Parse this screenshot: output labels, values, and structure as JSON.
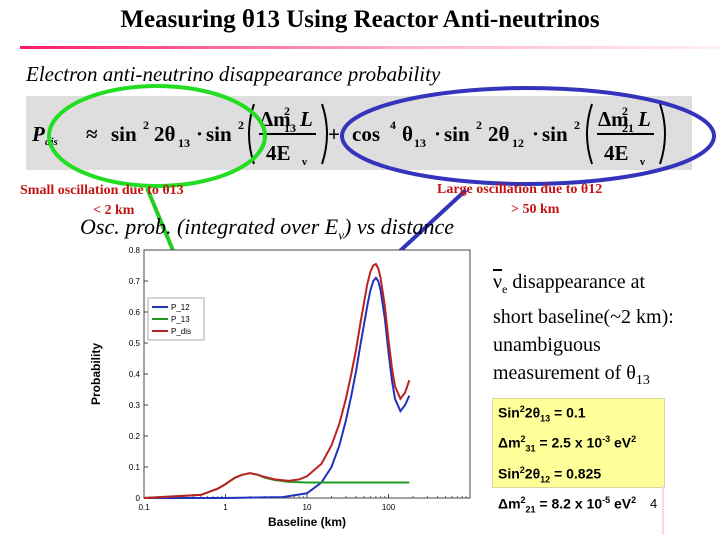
{
  "slide": {
    "title": "Measuring θ13 Using Reactor Anti-neutrinos",
    "subtitle": "Electron anti-neutrino disappearance probability",
    "formula": {
      "lhs": "P",
      "lhs_sub": "dis",
      "approx": "≈",
      "term1_sin2": "sin",
      "term1_angle": "2θ",
      "term1_angle_sub": "13",
      "dot": "·",
      "dm13": "Δm",
      "dm13_sup": "2",
      "dm13_sub": "13",
      "L": "L",
      "four_E": "4E",
      "E_sub": "ν",
      "plus": "+",
      "cos4": "cos",
      "cos4_sup": "4",
      "theta13": "θ",
      "theta13_sub": "13",
      "sin2_2theta12": "sin",
      "angle12": "2θ",
      "angle12_sub": "12",
      "dm21": "Δm",
      "dm21_sup": "2",
      "dm21_sub": "21",
      "sup2": "2"
    },
    "annotations": {
      "small_osc_line1": "Small oscillation due to θ13",
      "small_osc_line2": "< 2 km",
      "large_osc_line1": "Large oscillation due to θ12",
      "large_osc_line2": "> 50 km"
    },
    "plot_title_prefix": "Osc. prob. (integrated over E",
    "plot_title_sub": "ν",
    "plot_title_suffix": ")  vs distance",
    "side_text": {
      "nu": "ν",
      "nu_sub": "e",
      "line1_rest": " disappearance at",
      "line2": "short baseline(~2 km):",
      "line3": "unambiguous",
      "line4_prefix": "measurement of θ",
      "line4_sub": "13"
    },
    "params": [
      {
        "a": "Sin",
        "a_sup": "2",
        "b": "2θ",
        "b_sub": "13",
        "c": " = 0.1"
      },
      {
        "a": "Δm",
        "a_sup": "2",
        "b": "",
        "b_sub": "31",
        "c": " = 2.5 x 10",
        "c_sup": "-3",
        "d": " eV",
        "d_sup": "2"
      },
      {
        "a": "Sin",
        "a_sup": "2",
        "b": "2θ",
        "b_sub": "12",
        "c": " = 0.825"
      },
      {
        "a": "Δm",
        "a_sup": "2",
        "b": "",
        "b_sub": "21",
        "c": " = 8.2 x 10",
        "c_sup": "-5",
        "d": " eV",
        "d_sup": "2"
      }
    ],
    "page_number": "4",
    "colors": {
      "green_ellipse": "#22dd22",
      "blue_ellipse": "#3333bb",
      "arrow_green": "#22cc22",
      "arrow_blue": "#3333bb",
      "annotation_red": "#c41414",
      "param_bg": "#ffff99",
      "series_p12": "#2233bb",
      "series_p13": "#229922",
      "series_pdis": "#bb2222"
    }
  },
  "chart_data": {
    "type": "line",
    "xlabel": "Baseline (km)",
    "ylabel": "Probability",
    "x_scale": "log",
    "xlim": [
      0.1,
      1000
    ],
    "ylim": [
      0,
      0.8
    ],
    "x_ticks": [
      "0.1",
      "1",
      "10",
      "100"
    ],
    "y_ticks": [
      "0",
      "0.1",
      "0.2",
      "0.3",
      "0.4",
      "0.5",
      "0.6",
      "0.7",
      "0.8"
    ],
    "legend_position": "top-left",
    "grid": false,
    "series": [
      {
        "name": "P_12",
        "color": "#2233bb",
        "points": [
          [
            0.1,
            0
          ],
          [
            1,
            0
          ],
          [
            5,
            0.003
          ],
          [
            10,
            0.015
          ],
          [
            15,
            0.05
          ],
          [
            20,
            0.1
          ],
          [
            25,
            0.17
          ],
          [
            30,
            0.25
          ],
          [
            35,
            0.33
          ],
          [
            40,
            0.41
          ],
          [
            45,
            0.49
          ],
          [
            50,
            0.56
          ],
          [
            55,
            0.62
          ],
          [
            60,
            0.67
          ],
          [
            65,
            0.7
          ],
          [
            70,
            0.71
          ],
          [
            75,
            0.7
          ],
          [
            80,
            0.67
          ],
          [
            90,
            0.58
          ],
          [
            100,
            0.47
          ],
          [
            110,
            0.38
          ],
          [
            120,
            0.32
          ],
          [
            140,
            0.28
          ],
          [
            160,
            0.3
          ],
          [
            180,
            0.33
          ]
        ]
      },
      {
        "name": "P_13",
        "color": "#229922",
        "points": [
          [
            0.1,
            0
          ],
          [
            0.5,
            0.01
          ],
          [
            0.8,
            0.03
          ],
          [
            1,
            0.045
          ],
          [
            1.3,
            0.065
          ],
          [
            1.6,
            0.075
          ],
          [
            2,
            0.08
          ],
          [
            2.5,
            0.075
          ],
          [
            3,
            0.066
          ],
          [
            4,
            0.058
          ],
          [
            6,
            0.052
          ],
          [
            10,
            0.05
          ],
          [
            50,
            0.05
          ],
          [
            180,
            0.05
          ]
        ]
      },
      {
        "name": "P_dis",
        "color": "#bb2222",
        "points": [
          [
            0.1,
            0
          ],
          [
            0.5,
            0.01
          ],
          [
            0.8,
            0.03
          ],
          [
            1,
            0.045
          ],
          [
            1.3,
            0.065
          ],
          [
            1.6,
            0.075
          ],
          [
            2,
            0.08
          ],
          [
            2.5,
            0.075
          ],
          [
            3,
            0.068
          ],
          [
            4,
            0.06
          ],
          [
            6,
            0.055
          ],
          [
            8,
            0.06
          ],
          [
            10,
            0.07
          ],
          [
            15,
            0.11
          ],
          [
            20,
            0.17
          ],
          [
            25,
            0.24
          ],
          [
            30,
            0.32
          ],
          [
            35,
            0.4
          ],
          [
            40,
            0.48
          ],
          [
            45,
            0.56
          ],
          [
            50,
            0.63
          ],
          [
            55,
            0.69
          ],
          [
            60,
            0.73
          ],
          [
            65,
            0.75
          ],
          [
            70,
            0.755
          ],
          [
            75,
            0.74
          ],
          [
            80,
            0.71
          ],
          [
            90,
            0.62
          ],
          [
            100,
            0.51
          ],
          [
            110,
            0.42
          ],
          [
            120,
            0.36
          ],
          [
            140,
            0.32
          ],
          [
            160,
            0.34
          ],
          [
            180,
            0.38
          ]
        ]
      }
    ]
  }
}
